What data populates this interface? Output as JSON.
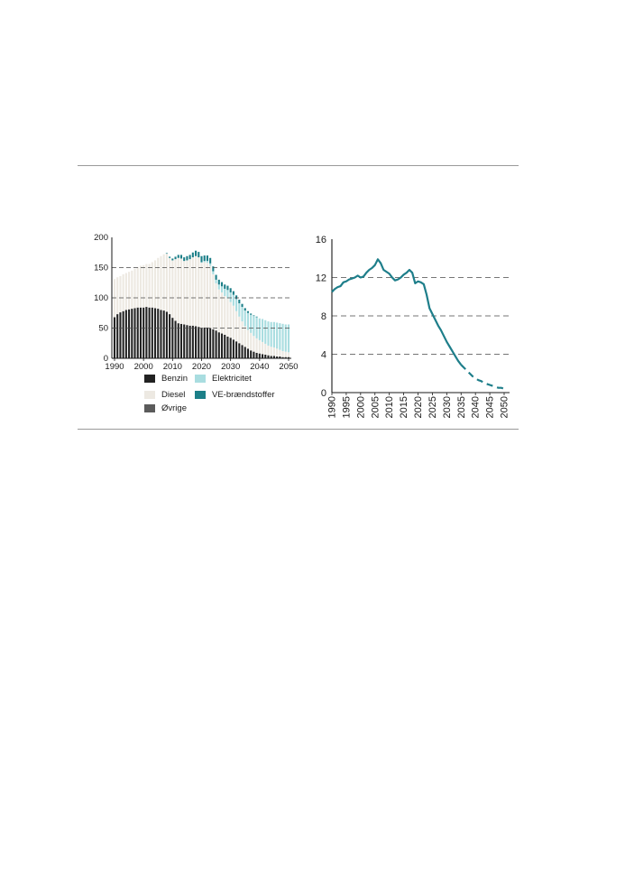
{
  "colors": {
    "benzin": "#222222",
    "diesel": "#ede9e2",
    "ovrige": "#5b5b5b",
    "elektricitet": "#a9dde0",
    "ve": "#1c7f88",
    "line": "#1e7e8a",
    "grid": "#4a4a4a",
    "rule": "#9a9a9a"
  },
  "chart_data": [
    {
      "type": "bar",
      "stacked": true,
      "x": [
        1990,
        1991,
        1992,
        1993,
        1994,
        1995,
        1996,
        1997,
        1998,
        1999,
        2000,
        2001,
        2002,
        2003,
        2004,
        2005,
        2006,
        2007,
        2008,
        2009,
        2010,
        2011,
        2012,
        2013,
        2014,
        2015,
        2016,
        2017,
        2018,
        2019,
        2020,
        2021,
        2022,
        2023,
        2024,
        2025,
        2026,
        2027,
        2028,
        2029,
        2030,
        2031,
        2032,
        2033,
        2034,
        2035,
        2036,
        2037,
        2038,
        2039,
        2040,
        2041,
        2042,
        2043,
        2044,
        2045,
        2046,
        2047,
        2048,
        2049,
        2050
      ],
      "series": [
        {
          "name": "Benzin",
          "values": [
            68,
            73,
            76,
            78,
            80,
            81,
            82,
            83,
            84,
            84,
            84,
            85,
            84,
            84,
            83,
            82,
            80,
            79,
            77,
            73,
            67,
            62,
            58,
            57,
            56,
            55,
            54,
            54,
            53,
            52,
            50,
            51,
            51,
            50,
            48,
            46,
            43,
            41,
            39,
            36,
            34,
            31,
            28,
            25,
            22,
            19,
            16,
            13,
            11,
            9,
            8,
            7,
            6,
            5,
            4,
            4,
            3,
            3,
            2,
            2,
            2
          ]
        },
        {
          "name": "Diesel",
          "values": [
            63,
            61,
            60,
            61,
            61,
            62,
            63,
            65,
            67,
            69,
            70,
            71,
            72,
            75,
            79,
            84,
            89,
            93,
            96,
            93,
            95,
            102,
            108,
            108,
            105,
            107,
            110,
            113,
            116,
            115,
            108,
            108,
            107,
            103,
            91,
            78,
            71,
            68,
            64,
            63,
            59,
            56,
            50,
            44,
            39,
            34,
            31,
            29,
            26,
            24,
            22,
            20,
            18,
            16,
            15,
            14,
            13,
            11,
            10,
            9,
            8
          ]
        },
        {
          "name": "Øvrige",
          "values": [
            0,
            0,
            0,
            0,
            0,
            0,
            0,
            0,
            0,
            0,
            0,
            0,
            0,
            0,
            0,
            0,
            0,
            0,
            0,
            0,
            0,
            0,
            0,
            0,
            0,
            0,
            0,
            0,
            0,
            0,
            0,
            0,
            0,
            0,
            0,
            0,
            0,
            0,
            0,
            0,
            0,
            0,
            0,
            0,
            0,
            0,
            0,
            0,
            0,
            0,
            0,
            0,
            0,
            0,
            0,
            0,
            0,
            0,
            0,
            0,
            0
          ]
        },
        {
          "name": "Elektricitet",
          "values": [
            0,
            0,
            0,
            0,
            0,
            0,
            0,
            0,
            0,
            0,
            0,
            0,
            0,
            0,
            0,
            0,
            0,
            0,
            0,
            0,
            0,
            0,
            0,
            0,
            0,
            0,
            0,
            0,
            0,
            0,
            1,
            2,
            3,
            4,
            5,
            6,
            8,
            10,
            12,
            14,
            16,
            18,
            20,
            22,
            24,
            26,
            28,
            30,
            33,
            35,
            36,
            38,
            39,
            40,
            41,
            42,
            43,
            44,
            45,
            45,
            46
          ]
        },
        {
          "name": "VE-brændstoffer",
          "values": [
            0,
            0,
            0,
            0,
            0,
            0,
            0,
            0,
            0,
            0,
            0,
            0,
            0,
            0,
            0,
            0,
            0,
            0,
            1,
            2,
            3,
            4,
            5,
            6,
            6,
            7,
            7,
            8,
            9,
            9,
            10,
            9,
            9,
            9,
            8,
            8,
            8,
            7,
            7,
            7,
            7,
            6,
            6,
            6,
            5,
            4,
            3,
            2,
            1,
            1,
            0,
            0,
            0,
            0,
            0,
            0,
            0,
            0,
            0,
            0,
            0
          ]
        }
      ],
      "ylim": [
        0,
        200
      ],
      "yticks": [
        0,
        50,
        100,
        150,
        200
      ],
      "xticks": [
        1990,
        2000,
        2010,
        2020,
        2030,
        2040,
        2050
      ],
      "gridlines": [
        50,
        100,
        150
      ],
      "legend_position": "bottom"
    },
    {
      "type": "line",
      "x": [
        1990,
        1991,
        1992,
        1993,
        1994,
        1995,
        1996,
        1997,
        1998,
        1999,
        2000,
        2001,
        2002,
        2003,
        2004,
        2005,
        2006,
        2007,
        2008,
        2009,
        2010,
        2011,
        2012,
        2013,
        2014,
        2015,
        2016,
        2017,
        2018,
        2019,
        2020,
        2021,
        2022,
        2023,
        2024,
        2025,
        2026,
        2027,
        2028,
        2029,
        2030,
        2031,
        2032,
        2033,
        2034,
        2035,
        2036,
        2037,
        2038,
        2039,
        2040,
        2041,
        2042,
        2043,
        2044,
        2045,
        2046,
        2047,
        2048,
        2049,
        2050
      ],
      "y": [
        10.5,
        10.8,
        11.0,
        11.1,
        11.5,
        11.6,
        11.8,
        11.9,
        12.0,
        12.2,
        12.0,
        12.1,
        12.5,
        12.8,
        13.0,
        13.3,
        13.9,
        13.5,
        12.8,
        12.6,
        12.4,
        12.0,
        11.7,
        11.8,
        12.0,
        12.3,
        12.5,
        12.8,
        12.5,
        11.4,
        11.6,
        11.5,
        11.3,
        10.2,
        8.8,
        8.2,
        7.6,
        7.0,
        6.5,
        5.9,
        5.3,
        4.8,
        4.3,
        3.8,
        3.3,
        2.9,
        2.6,
        2.3,
        2.0,
        1.7,
        1.5,
        1.3,
        1.2,
        1.0,
        0.9,
        0.8,
        0.7,
        0.6,
        0.5,
        0.5,
        0.4
      ],
      "projection_from": 2035,
      "ylim": [
        0,
        16
      ],
      "yticks": [
        0,
        4,
        8,
        12,
        16
      ],
      "xticks": [
        1990,
        1995,
        2000,
        2005,
        2010,
        2015,
        2020,
        2025,
        2030,
        2035,
        2040,
        2045,
        2050
      ],
      "gridlines": [
        4,
        8,
        12
      ]
    }
  ]
}
